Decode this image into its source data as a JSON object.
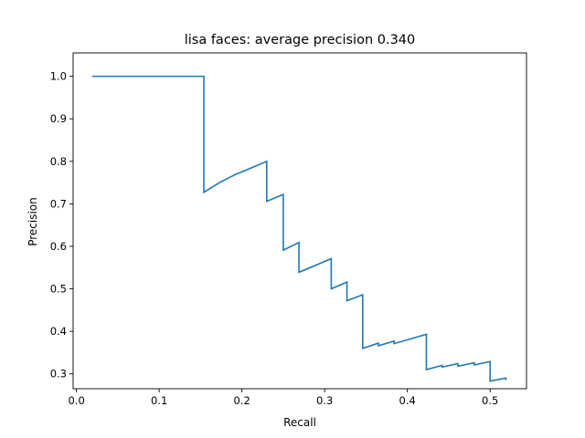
{
  "chart_data": {
    "type": "line",
    "title": "lisa faces: average precision 0.340",
    "xlabel": "Recall",
    "ylabel": "Precision",
    "xlim": [
      -0.004,
      0.544
    ],
    "ylim": [
      0.265,
      1.055
    ],
    "grid": false,
    "legend": "none",
    "line_color": "#1f77b4",
    "x_ticks": [
      0.0,
      0.1,
      0.2,
      0.3,
      0.4,
      0.5
    ],
    "x_tick_labels": [
      "0.0",
      "0.1",
      "0.2",
      "0.3",
      "0.4",
      "0.5"
    ],
    "y_ticks": [
      0.3,
      0.4,
      0.5,
      0.6,
      0.7,
      0.8,
      0.9,
      1.0
    ],
    "y_tick_labels": [
      "0.3",
      "0.4",
      "0.5",
      "0.6",
      "0.7",
      "0.8",
      "0.9",
      "1.0"
    ],
    "series": [
      {
        "x": [
          0.019,
          0.154,
          0.154,
          0.173,
          0.192,
          0.212,
          0.23,
          0.23,
          0.25,
          0.25,
          0.269,
          0.269,
          0.308,
          0.308,
          0.327,
          0.327,
          0.346,
          0.346,
          0.365,
          0.365,
          0.384,
          0.384,
          0.423,
          0.423,
          0.442,
          0.442,
          0.461,
          0.461,
          0.481,
          0.481,
          0.5,
          0.5,
          0.519,
          0.519
        ],
        "y": [
          1.0,
          1.0,
          0.727,
          0.75,
          0.769,
          0.785,
          0.8,
          0.706,
          0.722,
          0.591,
          0.609,
          0.539,
          0.571,
          0.5,
          0.516,
          0.472,
          0.486,
          0.36,
          0.372,
          0.366,
          0.377,
          0.371,
          0.393,
          0.31,
          0.32,
          0.316,
          0.324,
          0.318,
          0.326,
          0.321,
          0.329,
          0.283,
          0.29,
          0.285
        ]
      }
    ]
  }
}
